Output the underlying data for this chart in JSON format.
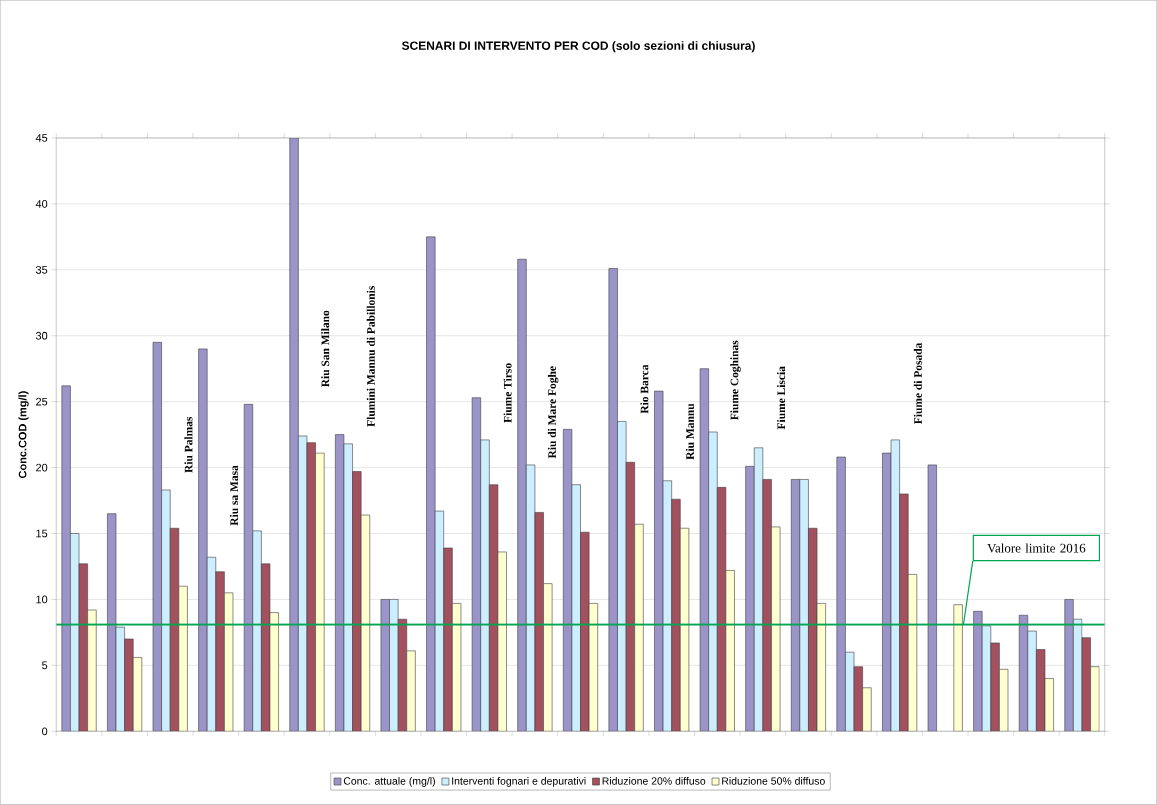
{
  "chart_data": {
    "type": "bar",
    "title": "SCENARI DI INTERVENTO PER COD (solo sezioni di chiusura)",
    "ylabel": "Conc.COD (mg/l)",
    "categories": [
      null,
      null,
      null,
      null,
      null,
      null,
      null,
      null,
      null,
      null,
      null,
      null,
      null,
      null,
      null,
      null,
      null,
      null,
      null,
      null,
      null,
      null,
      null
    ],
    "series": [
      {
        "name": "Conc. attuale (mg/l)",
        "color": "#9b94c8",
        "values": [
          26.2,
          16.5,
          29.5,
          29.0,
          24.8,
          45.0,
          22.5,
          10.0,
          37.5,
          25.3,
          35.8,
          22.9,
          35.1,
          25.8,
          27.5,
          20.1,
          19.1,
          20.8,
          21.1,
          20.2,
          9.1,
          8.8,
          10.0
        ]
      },
      {
        "name": "Interventi fognari e depurativi",
        "color": "#cceeff",
        "values": [
          15.0,
          7.9,
          18.3,
          13.2,
          15.2,
          22.4,
          21.8,
          10.0,
          16.7,
          22.1,
          20.2,
          18.7,
          23.5,
          19.0,
          22.7,
          21.5,
          19.1,
          6.0,
          22.1,
          null,
          8.0,
          7.6,
          8.5
        ]
      },
      {
        "name": "Riduzione 20% diffuso",
        "color": "#a3505f",
        "values": [
          12.7,
          7.0,
          15.4,
          12.1,
          12.7,
          21.9,
          19.7,
          8.5,
          13.9,
          18.7,
          16.6,
          15.1,
          20.4,
          17.6,
          18.5,
          19.1,
          15.4,
          4.9,
          18.0,
          null,
          6.7,
          6.2,
          7.1
        ]
      },
      {
        "name": "Riduzione 50% diffuso",
        "color": "#ffffd0",
        "values": [
          9.2,
          5.6,
          11.0,
          10.5,
          9.0,
          21.1,
          16.4,
          6.1,
          9.7,
          13.6,
          11.2,
          9.7,
          15.7,
          15.4,
          12.2,
          15.5,
          9.7,
          3.3,
          11.9,
          9.6,
          4.7,
          4.0,
          4.9
        ]
      }
    ],
    "ylim": [
      0,
      45
    ],
    "yticks": [
      0,
      5,
      10,
      15,
      20,
      25,
      30,
      35,
      40,
      45
    ],
    "grid": "y",
    "legend": "bottom",
    "ref_lines": [
      {
        "axis": "y",
        "value": 8.1,
        "label": "Valore limite 2016",
        "color": "#00a651"
      }
    ],
    "annotations": [
      "Riu Palmas",
      "Riu sa Masa",
      "Riu San Milano",
      "Flumini Mannu di Pabillonis",
      "Fiume Tirso",
      "Riu di Mare Foghe",
      "Rio Barca",
      "Riu Mannu",
      "Fiume Coghinas",
      "Fiume Liscia",
      "Fiume di Posada"
    ]
  }
}
